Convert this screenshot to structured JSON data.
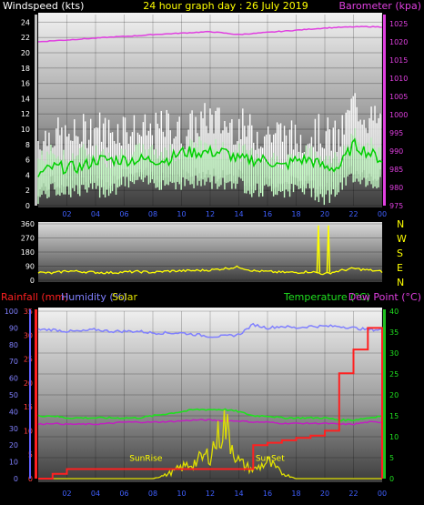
{
  "title": "24 hour graph day : 26 July 2019",
  "colors": {
    "background": "#000000",
    "wind_speed": "#ffffff",
    "wind_avg": "#00d000",
    "wind_light": "#c8ffc8",
    "barometer": "#e040e0",
    "direction": "#ffff00",
    "rainfall": "#ff2020",
    "humidity": "#8080ff",
    "solar": "#e0e000",
    "temperature": "#20e020",
    "dewpoint": "#c020c0"
  },
  "chart_data": [
    {
      "type": "line",
      "name": "wind-baro",
      "left_label": "Windspeed (kts)",
      "right_label": "Barometer (kpa)",
      "x_ticks": [
        "02",
        "04",
        "06",
        "08",
        "10",
        "12",
        "14",
        "16",
        "18",
        "20",
        "22",
        "00"
      ],
      "y_left_ticks": [
        "0",
        "2",
        "4",
        "6",
        "8",
        "10",
        "12",
        "14",
        "16",
        "18",
        "20",
        "22",
        "24"
      ],
      "y_right_ticks": [
        "975",
        "980",
        "985",
        "990",
        "995",
        "1000",
        "1005",
        "1010",
        "1015",
        "1020",
        "1025"
      ],
      "ylim_left": [
        0,
        25
      ],
      "ylim_right": [
        975,
        1027.5
      ],
      "x_hours": [
        0,
        1,
        2,
        3,
        4,
        5,
        6,
        7,
        8,
        9,
        10,
        11,
        12,
        13,
        14,
        15,
        16,
        17,
        18,
        19,
        20,
        21,
        22,
        23,
        24
      ],
      "series": [
        {
          "key": "gust",
          "values": [
            8,
            9,
            8,
            9,
            10,
            9,
            10,
            9,
            9,
            10,
            9,
            10,
            11,
            10,
            10,
            9,
            9,
            9,
            8,
            9,
            9,
            8,
            13,
            11,
            10
          ]
        },
        {
          "key": "speed",
          "values": [
            6,
            7,
            6,
            7,
            7,
            6,
            7,
            7,
            7,
            7,
            7,
            8,
            8,
            7,
            7,
            7,
            6,
            6,
            6,
            7,
            6,
            6,
            9,
            8,
            7
          ]
        },
        {
          "key": "average",
          "values": [
            4,
            5,
            5,
            5,
            6,
            6,
            6,
            6,
            6,
            6,
            7,
            7,
            7,
            7,
            6,
            6,
            6,
            5,
            6,
            6,
            5,
            5,
            8,
            7,
            6
          ]
        },
        {
          "key": "low",
          "values": [
            2,
            3,
            3,
            3,
            3,
            3,
            4,
            4,
            4,
            4,
            4,
            4,
            4,
            4,
            4,
            3,
            3,
            3,
            3,
            3,
            2,
            3,
            5,
            4,
            4
          ]
        },
        {
          "key": "barometer",
          "values": [
            1020,
            1020.3,
            1020.5,
            1020.8,
            1021,
            1021.3,
            1021.5,
            1021.7,
            1022,
            1022.2,
            1022.4,
            1022.6,
            1022.8,
            1022.4,
            1022,
            1022.3,
            1022.6,
            1022.9,
            1023.2,
            1023.5,
            1023.8,
            1024,
            1024.1,
            1024.2,
            1024.1
          ]
        }
      ]
    },
    {
      "type": "line",
      "name": "direction",
      "y_left_ticks": [
        "360",
        "270",
        "180",
        "90",
        "0"
      ],
      "y_right_ticks": [
        "N",
        "W",
        "S",
        "E",
        "N"
      ],
      "ylim": [
        0,
        360
      ],
      "x_hours": [
        0,
        1,
        2,
        3,
        4,
        5,
        6,
        7,
        8,
        9,
        10,
        11,
        12,
        13,
        14,
        15,
        16,
        17,
        18,
        19,
        20,
        21,
        22,
        23,
        24
      ],
      "series": [
        {
          "key": "direction",
          "values": [
            50,
            45,
            60,
            55,
            50,
            48,
            52,
            55,
            50,
            58,
            60,
            62,
            65,
            75,
            85,
            60,
            55,
            50,
            50,
            55,
            40,
            60,
            75,
            65,
            55
          ]
        }
      ],
      "spikes_hours": [
        19.55,
        20.25
      ]
    },
    {
      "type": "line",
      "name": "rain-humidity-temp",
      "left_labels": [
        "Rainfall (mm)",
        "Humidity (%)",
        "Solar"
      ],
      "right_labels": [
        "Temperature (°C)",
        "Dew Point (°C)"
      ],
      "x_ticks": [
        "02",
        "04",
        "06",
        "08",
        "10",
        "12",
        "14",
        "16",
        "18",
        "20",
        "22",
        "00"
      ],
      "y_rain_ticks": [
        "0",
        "5",
        "10",
        "15",
        "20",
        "25",
        "30",
        "35"
      ],
      "y_hum_ticks": [
        "0",
        "10",
        "20",
        "30",
        "40",
        "50",
        "60",
        "70",
        "80",
        "90",
        "100"
      ],
      "y_temp_ticks": [
        "0",
        "5",
        "10",
        "15",
        "20",
        "25",
        "30",
        "35",
        "40"
      ],
      "ylim_rain": [
        0,
        35
      ],
      "ylim_temp": [
        0,
        40
      ],
      "annotations": [
        {
          "text": "SunRise",
          "hour": 7
        },
        {
          "text": "SunSet",
          "hour": 15.8
        }
      ],
      "x_hours": [
        0,
        1,
        2,
        3,
        4,
        5,
        6,
        7,
        8,
        9,
        10,
        11,
        12,
        13,
        14,
        15,
        16,
        17,
        18,
        19,
        20,
        21,
        22,
        23,
        24
      ],
      "series": [
        {
          "key": "humidity",
          "values": [
            89,
            89,
            88,
            88,
            89,
            88,
            88,
            88,
            87,
            87,
            87,
            86,
            85,
            85,
            86,
            92,
            90,
            91,
            90,
            91,
            91,
            91,
            90,
            89,
            89
          ]
        },
        {
          "key": "temperature",
          "values": [
            15,
            15,
            14.5,
            14.5,
            14.5,
            14.5,
            14.5,
            14.5,
            15,
            15.5,
            16,
            16.5,
            16.5,
            16.5,
            16,
            15,
            15,
            14.5,
            14.5,
            14.5,
            14.5,
            14,
            14,
            14.5,
            15
          ]
        },
        {
          "key": "dewpoint",
          "values": [
            13,
            13.2,
            13,
            13,
            13,
            13.2,
            13.5,
            13.5,
            13.5,
            13.6,
            13.8,
            14,
            14,
            13.8,
            13.8,
            13.5,
            13.5,
            13.2,
            13.2,
            13.2,
            13.2,
            13,
            13,
            13.5,
            13.5
          ]
        },
        {
          "key": "solar",
          "values": [
            0,
            0,
            0,
            0,
            0,
            0,
            0,
            0,
            0,
            3,
            8,
            12,
            18,
            40,
            12,
            6,
            12,
            4,
            0,
            0,
            0,
            0,
            0,
            0,
            0
          ]
        },
        {
          "key": "rainfall",
          "values": [
            0,
            1,
            2,
            2,
            2,
            2,
            2,
            2,
            2,
            2,
            2,
            2,
            2,
            2,
            2,
            7,
            7.5,
            8,
            8.5,
            9,
            10,
            22,
            27,
            31.5,
            31.5
          ]
        }
      ]
    }
  ]
}
